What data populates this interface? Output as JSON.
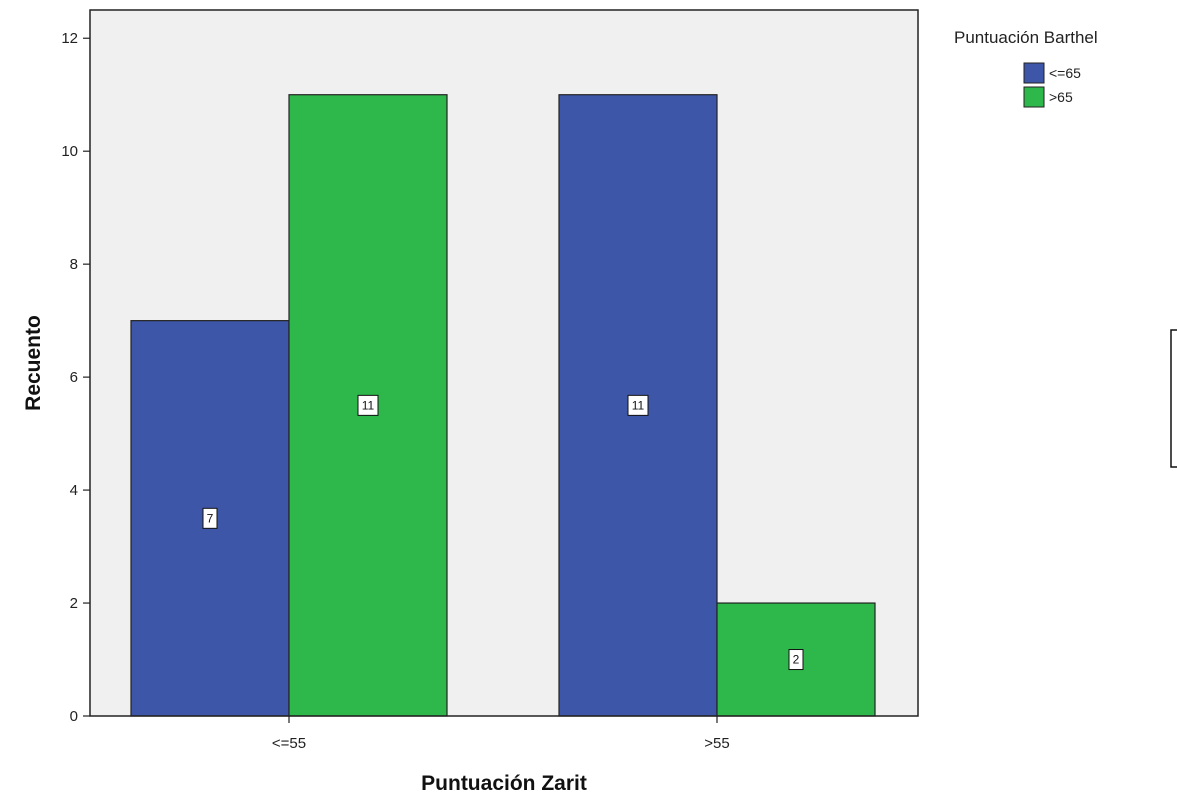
{
  "chart_data": {
    "type": "bar",
    "xlabel": "Puntuación Zarit",
    "ylabel": "Recuento",
    "categories": [
      "<=55",
      ">55"
    ],
    "series": [
      {
        "name": "<=65",
        "values": [
          7,
          11
        ],
        "color": "#3E56A8"
      },
      {
        "name": ">65",
        "values": [
          11,
          2
        ],
        "color": "#2EB74A"
      }
    ],
    "ylim": [
      0,
      12.5
    ],
    "yticks": [
      0,
      2,
      4,
      6,
      8,
      10,
      12
    ],
    "legend": {
      "title": "Puntuación Barthel",
      "placement": "top-right outside"
    },
    "plot_background": "#F0F0F0",
    "grid": false
  }
}
